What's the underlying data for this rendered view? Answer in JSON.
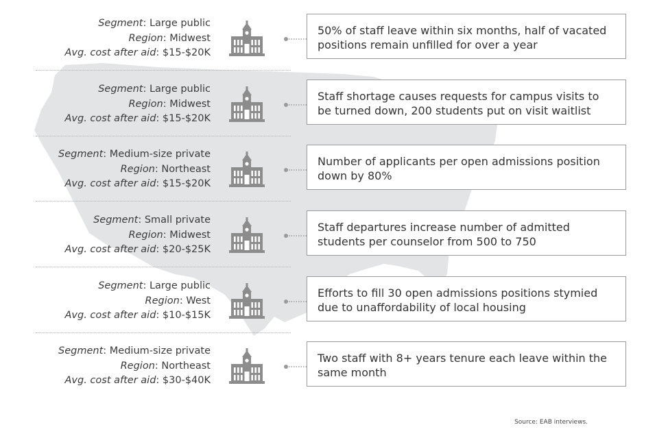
{
  "labels": {
    "segment": "Segment",
    "region": "Region",
    "cost": "Avg. cost after aid"
  },
  "rows": [
    {
      "segment": "Large public",
      "region": "Midwest",
      "cost": "$15-$20K",
      "text": "50% of staff leave within six months, half of vacated positions remain unfilled for over a year"
    },
    {
      "segment": "Large public",
      "region": "Midwest",
      "cost": "$15-$20K",
      "text": "Staff shortage causes requests for campus visits to be turned down, 200 students put on visit waitlist"
    },
    {
      "segment": "Medium-size private",
      "region": "Northeast",
      "cost": "$15-$20K",
      "text": "Number of applicants per open admissions position down by 80%"
    },
    {
      "segment": "Small private",
      "region": "Midwest",
      "cost": "$20-$25K",
      "text": "Staff departures increase number of admitted students per counselor from 500 to 750"
    },
    {
      "segment": "Large public",
      "region": "West",
      "cost": "$10-$15K",
      "text": "Efforts to fill 30 open admissions positions stymied due to unaffordability of local housing"
    },
    {
      "segment": "Medium-size private",
      "region": "Northeast",
      "cost": "$30-$40K",
      "text": "Two staff with 8+ years tenure each leave within the same month"
    }
  ],
  "source": "Source: EAB interviews.",
  "colors": {
    "map": "#e3e4e6",
    "icon": "#8c8c8c",
    "border": "#9a9a9a"
  },
  "icons": {
    "building": "campus-building-icon",
    "map": "us-map-silhouette"
  }
}
